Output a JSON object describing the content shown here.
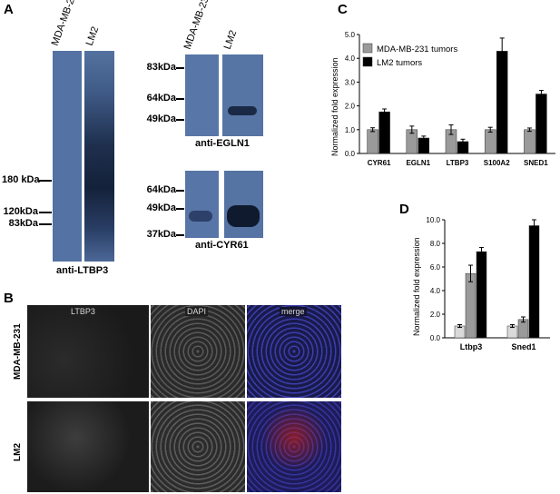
{
  "panel_a": {
    "letter": "A",
    "ltbp3_blot": {
      "lanes": [
        "MDA-MB-231",
        "LM2"
      ],
      "markers": [
        "180 kDa",
        "120kDa",
        "83kDa"
      ],
      "caption": "anti-LTBP3"
    },
    "egln1_blot": {
      "lanes": [
        "MDA-MB-231",
        "LM2"
      ],
      "markers": [
        "83kDa",
        "64kDa",
        "49kDa"
      ],
      "caption": "anti-EGLN1"
    },
    "cyr61_blot": {
      "markers": [
        "64kDa",
        "49kDa",
        "37kDa"
      ],
      "caption": "anti-CYR61"
    }
  },
  "panel_b": {
    "letter": "B",
    "columns": [
      "LTBP3",
      "DAPI",
      "merge"
    ],
    "rows": [
      "MDA-MB-231",
      "LM2"
    ]
  },
  "panel_c": {
    "letter": "C"
  },
  "panel_d": {
    "letter": "D"
  },
  "colors": {
    "blot": "#4f6fa0",
    "gray_bar": "#9a9a9a",
    "black_bar": "#000000",
    "light_bar": "#d9d9d9"
  },
  "chart_data": [
    {
      "type": "bar",
      "categories": [
        "CYR61",
        "EGLN1",
        "LTBP3",
        "S100A2",
        "SNED1"
      ],
      "series": [
        {
          "name": "MDA-MB-231 tumors",
          "values": [
            1.0,
            1.0,
            1.0,
            1.0,
            1.0
          ],
          "errors": [
            0.08,
            0.15,
            0.2,
            0.1,
            0.07
          ],
          "color": "#9a9a9a"
        },
        {
          "name": "LM2 tumors",
          "values": [
            1.75,
            0.65,
            0.5,
            4.3,
            2.5
          ],
          "errors": [
            0.12,
            0.08,
            0.1,
            0.55,
            0.15
          ],
          "color": "#000000"
        }
      ],
      "ylabel": "Normalized fold expression",
      "ylim": [
        0,
        5
      ],
      "yticks": [
        "0.0",
        "1.0",
        "2.0",
        "3.0",
        "4.0",
        "5.0"
      ],
      "legend": "top-left",
      "grid": false
    },
    {
      "type": "bar",
      "categories": [
        "Ltbp3",
        "Sned1"
      ],
      "series": [
        {
          "values": [
            1.0,
            1.0
          ],
          "errors": [
            0.12,
            0.12
          ],
          "color": "#d9d9d9"
        },
        {
          "values": [
            5.45,
            1.55
          ],
          "errors": [
            0.7,
            0.22
          ],
          "color": "#9a9a9a"
        },
        {
          "values": [
            7.3,
            9.5
          ],
          "errors": [
            0.35,
            0.5
          ],
          "color": "#000000"
        }
      ],
      "ylabel": "Normalized fold expression",
      "ylim": [
        0,
        10
      ],
      "yticks": [
        "0.0",
        "2.0",
        "4.0",
        "6.0",
        "8.0",
        "10.0"
      ],
      "grid": false
    }
  ]
}
